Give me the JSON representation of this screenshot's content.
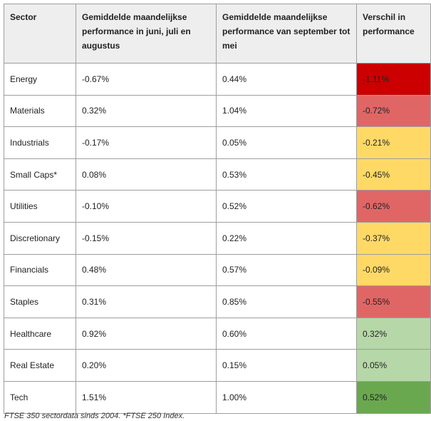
{
  "table": {
    "headers": [
      "Sector",
      "Gemiddelde maandelijkse performance in juni, juli en augustus",
      "Gemiddelde maandelijkse performance van september tot mei",
      "Verschil in performance"
    ],
    "colors": {
      "dark_red": "#cc0000",
      "red": "#e06666",
      "yellow": "#ffd966",
      "light_green": "#b6d7a8",
      "green": "#6aa84f"
    },
    "rows": [
      {
        "sector": "Energy",
        "summer": "-0.67%",
        "rest": "0.44%",
        "diff": "-1.11%",
        "color": "#cc0000"
      },
      {
        "sector": "Materials",
        "summer": "0.32%",
        "rest": "1.04%",
        "diff": "-0.72%",
        "color": "#e06666"
      },
      {
        "sector": "Industrials",
        "summer": "-0.17%",
        "rest": "0.05%",
        "diff": "-0.21%",
        "color": "#ffd966"
      },
      {
        "sector": "Small Caps*",
        "summer": "0.08%",
        "rest": "0.53%",
        "diff": "-0.45%",
        "color": "#ffd966"
      },
      {
        "sector": "Utilities",
        "summer": "-0.10%",
        "rest": "0.52%",
        "diff": "-0.62%",
        "color": "#e06666"
      },
      {
        "sector": "Discretionary",
        "summer": "-0.15%",
        "rest": "0.22%",
        "diff": "-0.37%",
        "color": "#ffd966"
      },
      {
        "sector": "Financials",
        "summer": "0.48%",
        "rest": "0.57%",
        "diff": "-0.09%",
        "color": "#ffd966"
      },
      {
        "sector": "Staples",
        "summer": "0.31%",
        "rest": "0.85%",
        "diff": "-0.55%",
        "color": "#e06666"
      },
      {
        "sector": "Healthcare",
        "summer": "0.92%",
        "rest": "0.60%",
        "diff": "0.32%",
        "color": "#b6d7a8"
      },
      {
        "sector": "Real Estate",
        "summer": "0.20%",
        "rest": "0.15%",
        "diff": "0.05%",
        "color": "#b6d7a8"
      },
      {
        "sector": "Tech",
        "summer": "1.51%",
        "rest": "1.00%",
        "diff": "0.52%",
        "color": "#6aa84f"
      }
    ]
  },
  "footnote": "FTSE 350 sectordata sinds 2004. *FTSE 250 Index."
}
